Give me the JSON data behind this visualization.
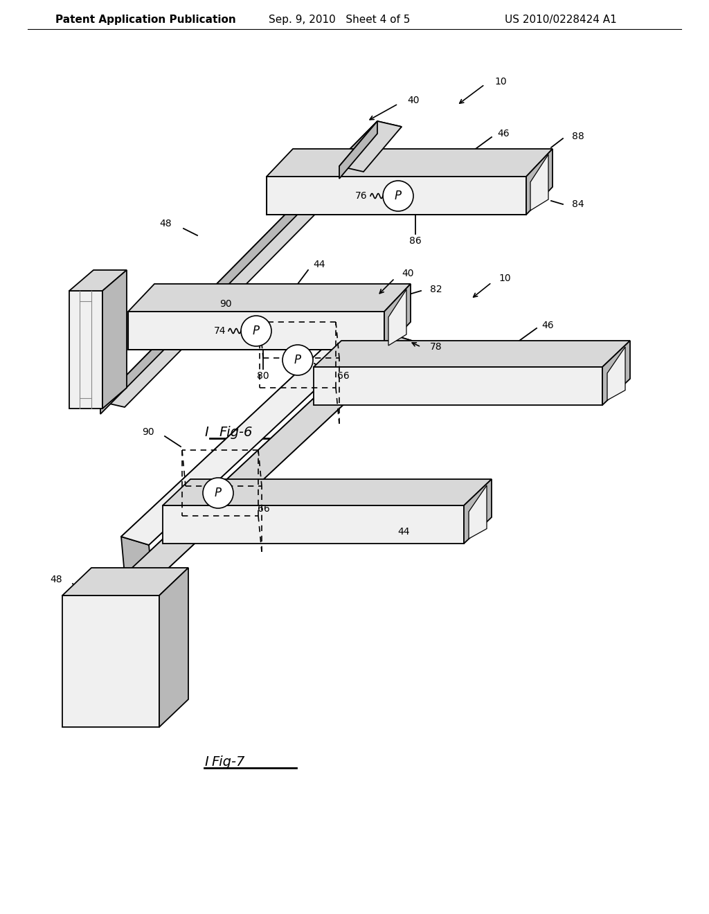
{
  "header_left": "Patent Application Publication",
  "header_mid": "Sep. 9, 2010   Sheet 4 of 5",
  "header_right": "US 2010/0228424 A1",
  "fig6_title": "Fig-6",
  "fig7_title": "Fig-7",
  "bg_color": "#ffffff",
  "lc": "#000000",
  "face_light": "#f0f0f0",
  "face_mid": "#d8d8d8",
  "face_dark": "#b8b8b8",
  "face_white": "#f8f8f8"
}
